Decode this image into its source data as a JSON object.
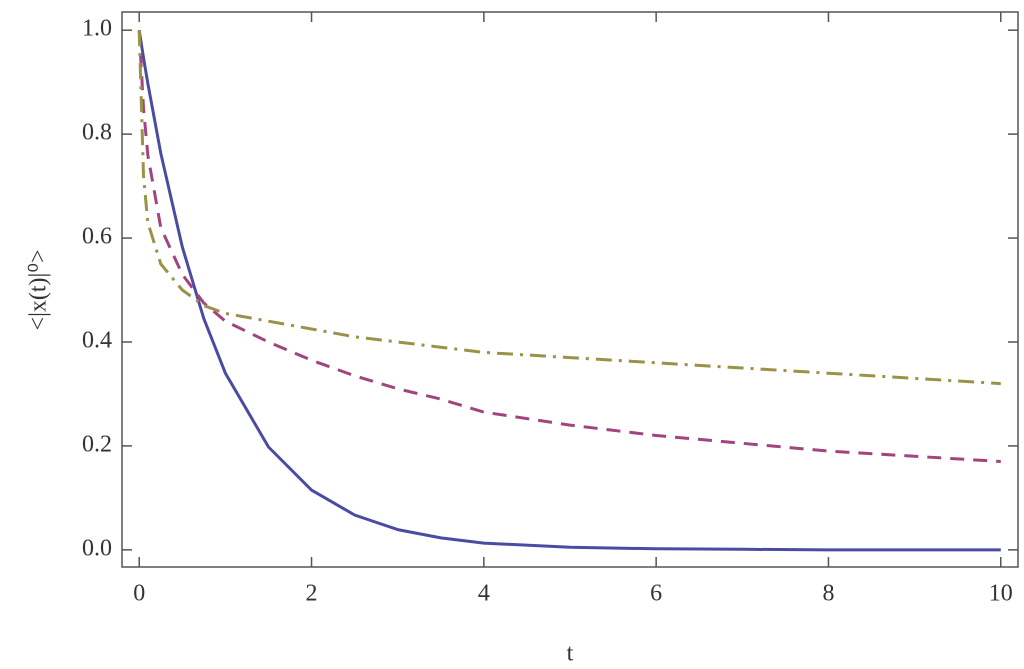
{
  "chart_data": {
    "type": "line",
    "xlabel": "t",
    "ylabel": "<|x(t)|⁰>",
    "x": [
      0,
      0.05,
      0.1,
      0.25,
      0.5,
      0.75,
      1,
      1.5,
      2,
      2.5,
      3,
      3.5,
      4,
      5,
      6,
      7,
      8,
      9,
      10
    ],
    "series": [
      {
        "color": "#4b4ba3",
        "dash": "none",
        "values": [
          1,
          0.947,
          0.898,
          0.763,
          0.583,
          0.445,
          0.34,
          0.198,
          0.115,
          0.067,
          0.039,
          0.023,
          0.013,
          0.005,
          0.002,
          0.001,
          0,
          0,
          0
        ]
      },
      {
        "color": "#a2457e",
        "dash": "14 9",
        "values": [
          1,
          0.85,
          0.76,
          0.62,
          0.53,
          0.475,
          0.44,
          0.4,
          0.365,
          0.335,
          0.31,
          0.29,
          0.265,
          0.24,
          0.22,
          0.205,
          0.19,
          0.18,
          0.17
        ]
      },
      {
        "color": "#9b9247",
        "dash": "16 7 3 7",
        "values": [
          1,
          0.72,
          0.63,
          0.55,
          0.5,
          0.47,
          0.455,
          0.44,
          0.425,
          0.41,
          0.4,
          0.39,
          0.38,
          0.37,
          0.36,
          0.35,
          0.34,
          0.33,
          0.32
        ]
      }
    ],
    "xlim": [
      -0.2,
      10.2
    ],
    "ylim": [
      -0.033,
      1.035
    ],
    "xticks": [
      0,
      2,
      4,
      6,
      8,
      10
    ],
    "yticks": [
      {
        "value": 0,
        "label": "0.0"
      },
      {
        "value": 0.2,
        "label": "0.2"
      },
      {
        "value": 0.4,
        "label": "0.4"
      },
      {
        "value": 0.6,
        "label": "0.6"
      },
      {
        "value": 0.8,
        "label": "0.8"
      },
      {
        "value": 1,
        "label": "1.0"
      }
    ]
  }
}
